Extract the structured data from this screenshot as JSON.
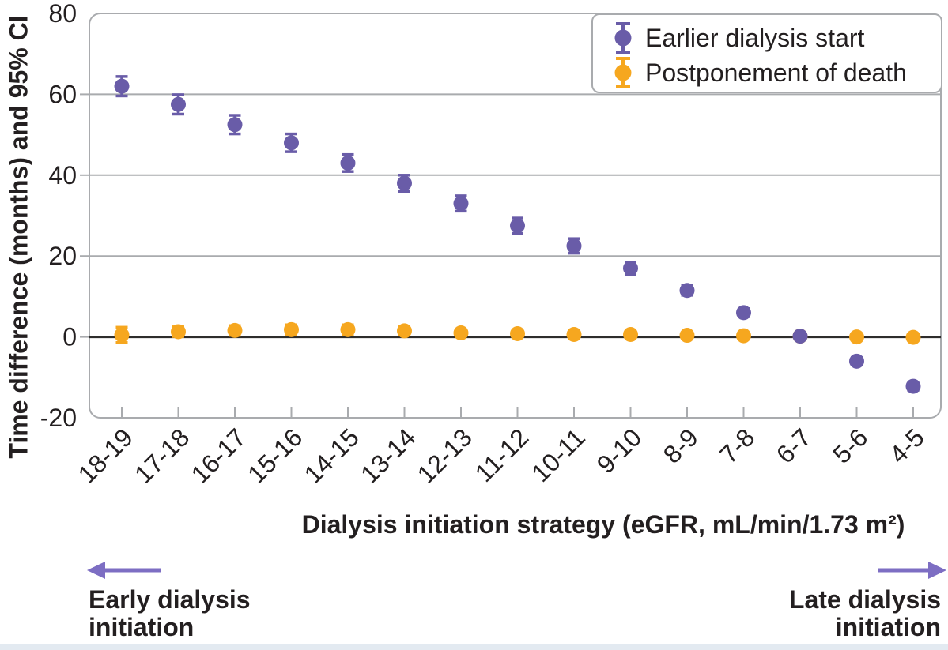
{
  "figure": {
    "x_axis_title": "Dialysis initiation strategy (eGFR, mL/min/1.73 m²)",
    "y_axis_title": "Time difference (months) and 95% CI",
    "annotations": {
      "left_label": "Early dialysis initiation",
      "right_label": "Late dialysis initiation"
    }
  },
  "colors": {
    "purple_series": "#695CA8",
    "orange_series": "#F6A71F",
    "arrow": "#7D6EC3",
    "frame": "#A9ABAE",
    "grid": "#A9ABAE",
    "zero_line": "#2E2D2C",
    "text": "#231F20",
    "bottom_bar": "#E3EAF1"
  },
  "chart_data": {
    "type": "scatter",
    "title": "",
    "xlabel": "Dialysis initiation strategy (eGFR, mL/min/1.73 m²)",
    "ylabel": "Time difference (months) and 95% CI",
    "ylim": [
      -20,
      80
    ],
    "yticks": [
      80,
      60,
      40,
      20,
      0,
      -20
    ],
    "grid": "horizontal",
    "zero_line": true,
    "legend_position": "top-right",
    "categories": [
      "18-19",
      "17-18",
      "16-17",
      "15-16",
      "14-15",
      "13-14",
      "12-13",
      "11-12",
      "10-11",
      "9-10",
      "8-9",
      "7-8",
      "6-7",
      "5-6",
      "4-5"
    ],
    "series": [
      {
        "name": "Earlier dialysis start",
        "color": "#695CA8",
        "values": [
          62,
          57.5,
          52.5,
          48,
          43,
          38,
          33,
          27.5,
          22.5,
          17,
          11.5,
          6,
          0.2,
          -6,
          -12.2
        ],
        "ci": [
          2.4,
          2.4,
          2.3,
          2.2,
          2.1,
          2.0,
          1.9,
          1.9,
          1.8,
          1.5,
          1.2,
          1.0,
          0.8,
          0.9,
          1.0
        ]
      },
      {
        "name": "Postponement of death",
        "color": "#F6A71F",
        "values": [
          0.5,
          1.3,
          1.6,
          1.8,
          1.8,
          1.5,
          1.0,
          0.8,
          0.6,
          0.6,
          0.4,
          0.3,
          0.2,
          0.0,
          -0.1
        ],
        "ci": [
          1.9,
          1.2,
          1.2,
          1.2,
          1.2,
          1.0,
          0.8,
          0.8,
          0.6,
          0.6,
          0.5,
          0.5,
          0.4,
          0.4,
          0.5
        ]
      }
    ]
  }
}
